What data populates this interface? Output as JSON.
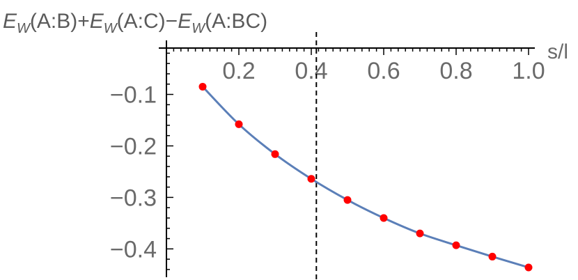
{
  "chart_data": {
    "type": "line",
    "title_parts": [
      {
        "text": "E",
        "style": "italic"
      },
      {
        "text": "W",
        "style": "sub"
      },
      {
        "text": "(A:B)+",
        "style": "normal"
      },
      {
        "text": "E",
        "style": "italic"
      },
      {
        "text": "W",
        "style": "sub"
      },
      {
        "text": "(A:C)−",
        "style": "normal"
      },
      {
        "text": "E",
        "style": "italic"
      },
      {
        "text": "W",
        "style": "sub"
      },
      {
        "text": "(A:BC)",
        "style": "normal"
      }
    ],
    "xlabel": "s/l",
    "ylabel": "",
    "xlim": [
      0,
      1.0
    ],
    "ylim": [
      -0.455,
      -0.01
    ],
    "x_ticks": [
      0.2,
      0.4,
      0.6,
      0.8,
      1.0
    ],
    "x_tick_labels": [
      "0.2",
      "0.4",
      "0.6",
      "0.8",
      "1.0"
    ],
    "y_ticks": [
      -0.1,
      -0.2,
      -0.3,
      -0.4
    ],
    "y_tick_labels": [
      "−0.1",
      "−0.2",
      "−0.3",
      "−0.4"
    ],
    "series": [
      {
        "kind": "curve",
        "color": "#5b7fb8",
        "x": [
          0.1,
          0.2,
          0.3,
          0.4,
          0.5,
          0.6,
          0.7,
          0.8,
          0.9,
          1.0
        ],
        "values": [
          -0.085,
          -0.158,
          -0.216,
          -0.264,
          -0.305,
          -0.34,
          -0.37,
          -0.393,
          -0.415,
          -0.436
        ]
      },
      {
        "kind": "points",
        "color": "#ff0000",
        "x": [
          0.1,
          0.2,
          0.3,
          0.4,
          0.5,
          0.6,
          0.7,
          0.8,
          0.9,
          1.0
        ],
        "values": [
          -0.085,
          -0.158,
          -0.216,
          -0.264,
          -0.305,
          -0.34,
          -0.37,
          -0.393,
          -0.415,
          -0.436
        ]
      }
    ],
    "reference_line": {
      "x": 0.414,
      "style": "dashed",
      "color": "#000000"
    },
    "grid": false,
    "legend": "none"
  }
}
